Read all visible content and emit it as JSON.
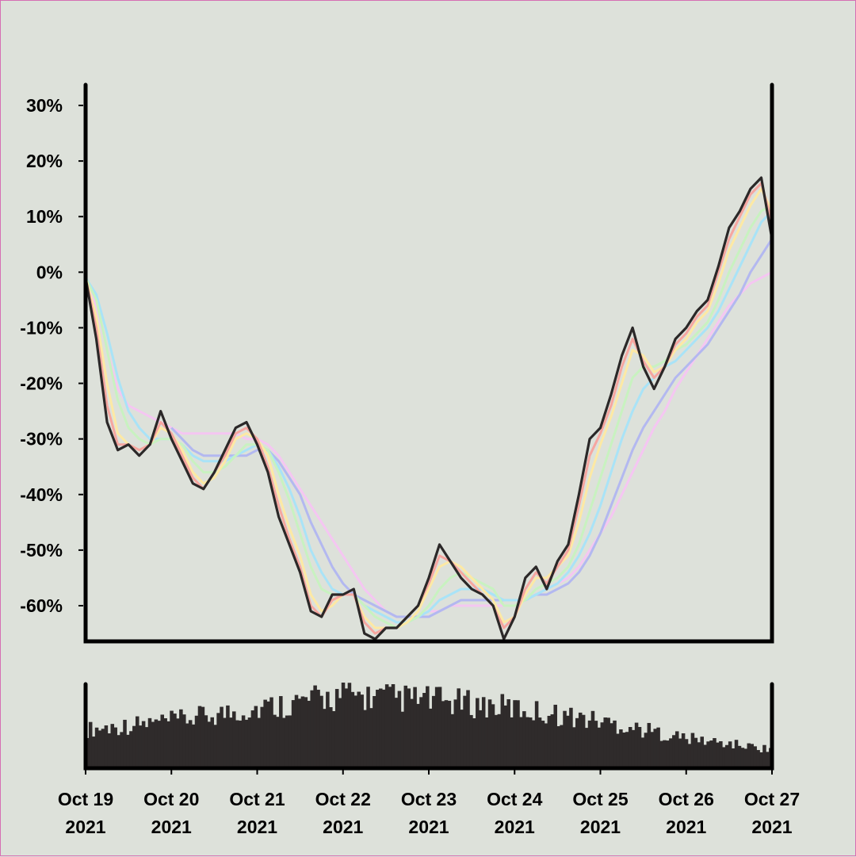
{
  "chart_data": {
    "type": "line",
    "title": "",
    "xlabel": "",
    "ylabel": "",
    "y_axis_format": "percent",
    "ylim": [
      -66.5,
      33
    ],
    "xlim": [
      "2021-10-19",
      "2021-10-27"
    ],
    "y_ticks": [
      "30%",
      "20%",
      "10%",
      "0%",
      "-10%",
      "-20%",
      "-30%",
      "-40%",
      "-50%",
      "-60%"
    ],
    "x_ticks": [
      {
        "month_day": "Oct 19",
        "year": "2021"
      },
      {
        "month_day": "Oct 20",
        "year": "2021"
      },
      {
        "month_day": "Oct 21",
        "year": "2021"
      },
      {
        "month_day": "Oct 22",
        "year": "2021"
      },
      {
        "month_day": "Oct 23",
        "year": "2021"
      },
      {
        "month_day": "Oct 24",
        "year": "2021"
      },
      {
        "month_day": "Oct 25",
        "year": "2021"
      },
      {
        "month_day": "Oct 26",
        "year": "2021"
      },
      {
        "month_day": "Oct 27",
        "year": "2021"
      }
    ],
    "grid": false,
    "legend": "none",
    "price_series": {
      "color": "#2b2828",
      "x": [
        "2021-10-19T00:00",
        "2021-10-19T03:00",
        "2021-10-19T06:00",
        "2021-10-19T09:00",
        "2021-10-19T12:00",
        "2021-10-19T15:00",
        "2021-10-19T18:00",
        "2021-10-19T21:00",
        "2021-10-20T00:00",
        "2021-10-20T03:00",
        "2021-10-20T06:00",
        "2021-10-20T09:00",
        "2021-10-20T12:00",
        "2021-10-20T15:00",
        "2021-10-20T18:00",
        "2021-10-20T21:00",
        "2021-10-21T00:00",
        "2021-10-21T03:00",
        "2021-10-21T06:00",
        "2021-10-21T09:00",
        "2021-10-21T12:00",
        "2021-10-21T15:00",
        "2021-10-21T18:00",
        "2021-10-21T21:00",
        "2021-10-22T00:00",
        "2021-10-22T03:00",
        "2021-10-22T06:00",
        "2021-10-22T09:00",
        "2021-10-22T12:00",
        "2021-10-22T15:00",
        "2021-10-22T18:00",
        "2021-10-22T21:00",
        "2021-10-23T00:00",
        "2021-10-23T03:00",
        "2021-10-23T06:00",
        "2021-10-23T09:00",
        "2021-10-23T12:00",
        "2021-10-23T15:00",
        "2021-10-23T18:00",
        "2021-10-23T21:00",
        "2021-10-24T00:00",
        "2021-10-24T03:00",
        "2021-10-24T06:00",
        "2021-10-24T09:00",
        "2021-10-24T12:00",
        "2021-10-24T15:00",
        "2021-10-24T18:00",
        "2021-10-24T21:00",
        "2021-10-25T00:00",
        "2021-10-25T03:00",
        "2021-10-25T06:00",
        "2021-10-25T09:00",
        "2021-10-25T12:00",
        "2021-10-25T15:00",
        "2021-10-25T18:00",
        "2021-10-25T21:00",
        "2021-10-26T00:00",
        "2021-10-26T03:00",
        "2021-10-26T06:00",
        "2021-10-26T09:00",
        "2021-10-26T12:00",
        "2021-10-26T15:00",
        "2021-10-26T18:00",
        "2021-10-26T21:00",
        "2021-10-27T00:00"
      ],
      "values": [
        -1,
        -12,
        -27,
        -32,
        -31,
        -33,
        -31,
        -25,
        -30,
        -34,
        -38,
        -39,
        -36,
        -32,
        -28,
        -27,
        -31,
        -36,
        -44,
        -49,
        -54,
        -61,
        -62,
        -58,
        -58,
        -57,
        -65,
        -66,
        -64,
        -64,
        -62,
        -60,
        -55,
        -49,
        -52,
        -55,
        -57,
        -58,
        -60,
        -66,
        -62,
        -55,
        -53,
        -57,
        -52,
        -49,
        -40,
        -30,
        -28,
        -22,
        -15,
        -10,
        -17,
        -21,
        -17,
        -12,
        -10,
        -7,
        -5,
        1,
        8,
        11,
        15,
        17,
        6
      ]
    },
    "moving_averages": [
      {
        "color": "#f6a6a0",
        "values": [
          -1,
          -10,
          -24,
          -31,
          -31,
          -32,
          -31,
          -27,
          -29,
          -33,
          -37,
          -39,
          -36,
          -33,
          -29,
          -28,
          -30,
          -35,
          -42,
          -48,
          -53,
          -60,
          -62,
          -59,
          -58,
          -58,
          -63,
          -65,
          -64,
          -64,
          -62,
          -60,
          -56,
          -51,
          -52,
          -54,
          -56,
          -58,
          -60,
          -64,
          -62,
          -57,
          -54,
          -56,
          -53,
          -50,
          -42,
          -33,
          -29,
          -24,
          -17,
          -12,
          -16,
          -19,
          -17,
          -13,
          -11,
          -8,
          -6,
          0,
          6,
          10,
          14,
          16,
          9
        ]
      },
      {
        "color": "#fde9a4",
        "values": [
          -1,
          -8,
          -20,
          -29,
          -31,
          -32,
          -31,
          -28,
          -29,
          -32,
          -36,
          -38,
          -37,
          -34,
          -30,
          -29,
          -30,
          -33,
          -40,
          -46,
          -51,
          -58,
          -61,
          -60,
          -58,
          -58,
          -62,
          -64,
          -64,
          -64,
          -63,
          -61,
          -57,
          -53,
          -52,
          -53,
          -55,
          -57,
          -59,
          -63,
          -62,
          -58,
          -55,
          -55,
          -53,
          -51,
          -45,
          -37,
          -31,
          -26,
          -20,
          -14,
          -15,
          -18,
          -17,
          -14,
          -12,
          -9,
          -7,
          -2,
          4,
          8,
          12,
          15,
          11
        ]
      },
      {
        "color": "#c8f2c0",
        "values": [
          -1,
          -5,
          -14,
          -23,
          -28,
          -30,
          -31,
          -30,
          -30,
          -31,
          -34,
          -36,
          -36,
          -35,
          -33,
          -31,
          -31,
          -32,
          -36,
          -41,
          -47,
          -53,
          -57,
          -58,
          -58,
          -58,
          -60,
          -62,
          -63,
          -64,
          -63,
          -62,
          -60,
          -57,
          -55,
          -54,
          -55,
          -56,
          -57,
          -60,
          -60,
          -59,
          -57,
          -56,
          -55,
          -53,
          -49,
          -43,
          -37,
          -31,
          -25,
          -19,
          -17,
          -17,
          -16,
          -14,
          -13,
          -11,
          -9,
          -5,
          0,
          4,
          8,
          11,
          12
        ]
      },
      {
        "color": "#a9e3f7",
        "values": [
          -1,
          -4,
          -11,
          -19,
          -25,
          -28,
          -30,
          -30,
          -30,
          -31,
          -33,
          -34,
          -34,
          -34,
          -33,
          -32,
          -31,
          -32,
          -35,
          -39,
          -44,
          -50,
          -54,
          -57,
          -58,
          -58,
          -60,
          -61,
          -62,
          -63,
          -63,
          -62,
          -61,
          -59,
          -58,
          -57,
          -57,
          -57,
          -58,
          -59,
          -59,
          -59,
          -58,
          -57,
          -56,
          -54,
          -51,
          -47,
          -42,
          -36,
          -30,
          -25,
          -21,
          -19,
          -17,
          -16,
          -14,
          -12,
          -10,
          -7,
          -3,
          1,
          5,
          9,
          11
        ]
      },
      {
        "color": "#b3b8f0",
        "values": [
          null,
          null,
          null,
          null,
          null,
          null,
          null,
          null,
          -28,
          -30,
          -32,
          -33,
          -33,
          -33,
          -33,
          -33,
          -32,
          -32,
          -34,
          -37,
          -40,
          -45,
          -49,
          -53,
          -56,
          -58,
          -59,
          -60,
          -61,
          -62,
          -62,
          -62,
          -62,
          -61,
          -60,
          -59,
          -59,
          -59,
          -59,
          -59,
          -59,
          -59,
          -58,
          -58,
          -57,
          -56,
          -54,
          -51,
          -47,
          -42,
          -37,
          -32,
          -28,
          -25,
          -22,
          -19,
          -17,
          -15,
          -13,
          -10,
          -7,
          -4,
          0,
          3,
          6
        ]
      },
      {
        "color": "#f5c6f2",
        "values": [
          -2,
          -6,
          -14,
          -21,
          -24,
          -25,
          -26,
          -27,
          -28,
          -29,
          -29,
          -29,
          -29,
          -29,
          -29,
          -30,
          -30,
          -31,
          -33,
          -36,
          -39,
          -42,
          -45,
          -48,
          -51,
          -54,
          -57,
          -59,
          -61,
          -62,
          -62,
          -62,
          -61,
          -61,
          -60,
          -60,
          -60,
          -60,
          -60,
          -60,
          -60,
          -59,
          -58,
          -57,
          -56,
          -55,
          -53,
          -50,
          -47,
          -44,
          -40,
          -36,
          -32,
          -28,
          -25,
          -21,
          -18,
          -15,
          -12,
          -9,
          -6,
          -4,
          -2,
          -1,
          0
        ]
      }
    ],
    "volume_series": {
      "color": "#2f2b2b",
      "x": [
        "2021-10-19",
        "2021-10-20",
        "2021-10-21",
        "2021-10-22",
        "2021-10-23",
        "2021-10-24",
        "2021-10-25",
        "2021-10-26",
        "2021-10-27"
      ],
      "relative_values": [
        0.45,
        0.55,
        0.7,
        0.85,
        0.8,
        0.7,
        0.55,
        0.35,
        0.22
      ]
    }
  }
}
